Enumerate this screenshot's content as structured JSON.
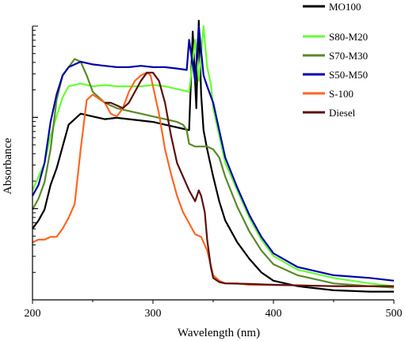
{
  "chart_data": {
    "type": "line",
    "xlabel": "Wavelength (nm)",
    "ylabel": "Absorbance",
    "xlim": [
      200,
      500
    ],
    "x_ticks": [
      200,
      300,
      400,
      500
    ],
    "y_tick_labels": "none",
    "grid": false,
    "legend_position": "right",
    "series": [
      {
        "name": "MO100",
        "color": "#000000",
        "x": [
          200,
          205,
          210,
          215,
          220,
          225,
          230,
          240,
          250,
          260,
          270,
          280,
          290,
          300,
          310,
          320,
          330,
          333,
          336,
          338,
          340,
          342,
          345,
          350,
          355,
          360,
          370,
          380,
          390,
          400,
          420,
          450,
          480,
          500
        ],
        "y": [
          0.26,
          0.29,
          0.33,
          0.42,
          0.48,
          0.56,
          0.64,
          0.68,
          0.67,
          0.66,
          0.665,
          0.66,
          0.655,
          0.65,
          0.64,
          0.63,
          0.62,
          0.98,
          0.7,
          1.02,
          0.75,
          0.62,
          0.55,
          0.45,
          0.36,
          0.29,
          0.21,
          0.15,
          0.1,
          0.07,
          0.05,
          0.035,
          0.03,
          0.03
        ]
      },
      {
        "name": "S80-M20",
        "color": "#66ff33",
        "x": [
          200,
          205,
          210,
          215,
          220,
          225,
          230,
          240,
          250,
          260,
          270,
          280,
          290,
          300,
          310,
          320,
          330,
          335,
          338,
          342,
          345,
          348,
          350,
          355,
          360,
          370,
          380,
          390,
          400,
          420,
          450,
          480,
          500
        ],
        "y": [
          0.4,
          0.45,
          0.5,
          0.6,
          0.67,
          0.74,
          0.78,
          0.79,
          0.78,
          0.785,
          0.78,
          0.78,
          0.78,
          0.785,
          0.78,
          0.77,
          0.76,
          0.95,
          0.8,
          1.0,
          0.85,
          0.79,
          0.7,
          0.6,
          0.5,
          0.4,
          0.3,
          0.22,
          0.16,
          0.11,
          0.08,
          0.06,
          0.05
        ]
      },
      {
        "name": "S70-M30",
        "color": "#5a8a28",
        "x": [
          200,
          205,
          210,
          215,
          220,
          225,
          230,
          235,
          240,
          245,
          250,
          260,
          270,
          280,
          290,
          300,
          310,
          320,
          325,
          328,
          330,
          335,
          340,
          345,
          350,
          355,
          360,
          370,
          380,
          390,
          400,
          420,
          450,
          480,
          500
        ],
        "y": [
          0.33,
          0.37,
          0.43,
          0.55,
          0.73,
          0.82,
          0.85,
          0.88,
          0.87,
          0.82,
          0.76,
          0.72,
          0.7,
          0.69,
          0.68,
          0.67,
          0.66,
          0.65,
          0.64,
          0.62,
          0.57,
          0.56,
          0.56,
          0.56,
          0.55,
          0.52,
          0.45,
          0.34,
          0.25,
          0.18,
          0.13,
          0.09,
          0.06,
          0.05,
          0.045
        ]
      },
      {
        "name": "S50-M50",
        "color": "#0000aa",
        "x": [
          200,
          205,
          210,
          215,
          220,
          225,
          230,
          235,
          240,
          250,
          260,
          270,
          280,
          290,
          300,
          310,
          320,
          328,
          330,
          335,
          338,
          342,
          345,
          350,
          355,
          360,
          370,
          380,
          390,
          400,
          420,
          450,
          480,
          500
        ],
        "y": [
          0.38,
          0.42,
          0.5,
          0.65,
          0.75,
          0.82,
          0.85,
          0.86,
          0.87,
          0.86,
          0.855,
          0.85,
          0.85,
          0.855,
          0.85,
          0.85,
          0.845,
          0.84,
          0.95,
          0.8,
          1.0,
          0.82,
          0.78,
          0.72,
          0.62,
          0.52,
          0.41,
          0.31,
          0.23,
          0.17,
          0.12,
          0.09,
          0.08,
          0.07
        ]
      },
      {
        "name": "S-100",
        "color": "#ff6622",
        "x": [
          200,
          205,
          210,
          215,
          220,
          225,
          230,
          235,
          240,
          245,
          250,
          260,
          265,
          270,
          275,
          280,
          285,
          290,
          295,
          298,
          300,
          305,
          310,
          315,
          320,
          325,
          330,
          335,
          340,
          345,
          350,
          355,
          360,
          370,
          380,
          400,
          450,
          500
        ],
        "y": [
          0.21,
          0.22,
          0.22,
          0.23,
          0.23,
          0.26,
          0.3,
          0.35,
          0.55,
          0.73,
          0.75,
          0.72,
          0.68,
          0.67,
          0.7,
          0.76,
          0.8,
          0.82,
          0.83,
          0.82,
          0.78,
          0.68,
          0.55,
          0.46,
          0.38,
          0.32,
          0.28,
          0.24,
          0.23,
          0.18,
          0.09,
          0.07,
          0.06,
          0.06,
          0.055,
          0.055,
          0.05,
          0.05
        ]
      },
      {
        "name": "Diesel",
        "color": "#5c0f0f",
        "x": [
          260,
          265,
          270,
          275,
          280,
          285,
          290,
          295,
          300,
          305,
          310,
          315,
          320,
          325,
          330,
          335,
          338,
          340,
          343,
          345,
          348,
          350,
          355,
          360,
          380,
          400,
          450,
          500
        ],
        "y": [
          0.72,
          0.72,
          0.71,
          0.7,
          0.72,
          0.76,
          0.8,
          0.83,
          0.83,
          0.8,
          0.72,
          0.6,
          0.5,
          0.45,
          0.4,
          0.36,
          0.4,
          0.38,
          0.32,
          0.22,
          0.12,
          0.08,
          0.065,
          0.06,
          0.058,
          0.055,
          0.05,
          0.05
        ]
      }
    ]
  }
}
